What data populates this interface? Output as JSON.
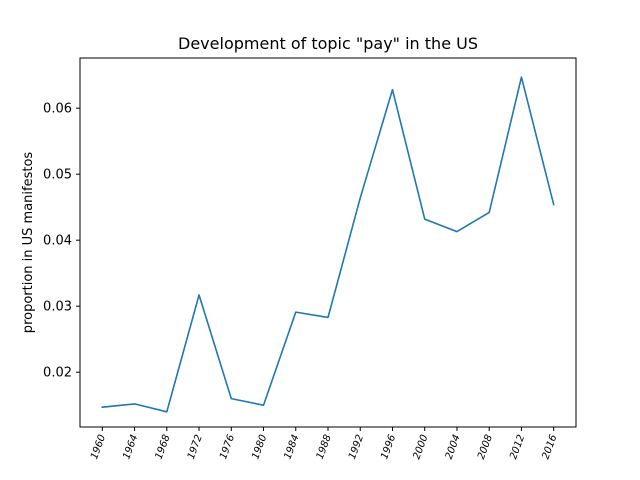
{
  "chart_data": {
    "type": "line",
    "title": "Development of topic \"pay\" in the US",
    "xlabel": "",
    "ylabel": "proportion in US manifestos",
    "x": [
      "1960",
      "1964",
      "1968",
      "1972",
      "1976",
      "1980",
      "1984",
      "1988",
      "1992",
      "1996",
      "2000",
      "2004",
      "2008",
      "2012",
      "2016"
    ],
    "series": [
      {
        "values": [
          0.0147,
          0.0152,
          0.014,
          0.0317,
          0.016,
          0.015,
          0.0291,
          0.0283,
          0.0464,
          0.0628,
          0.0432,
          0.0413,
          0.0442,
          0.0647,
          0.0454
        ],
        "color": "#1f77b4"
      }
    ],
    "ylim": [
      0.0117,
      0.0676
    ],
    "yticks": [
      "0.02",
      "0.03",
      "0.04",
      "0.05",
      "0.06"
    ],
    "ytick_values": [
      0.02,
      0.03,
      0.04,
      0.05,
      0.06
    ],
    "grid": false
  }
}
